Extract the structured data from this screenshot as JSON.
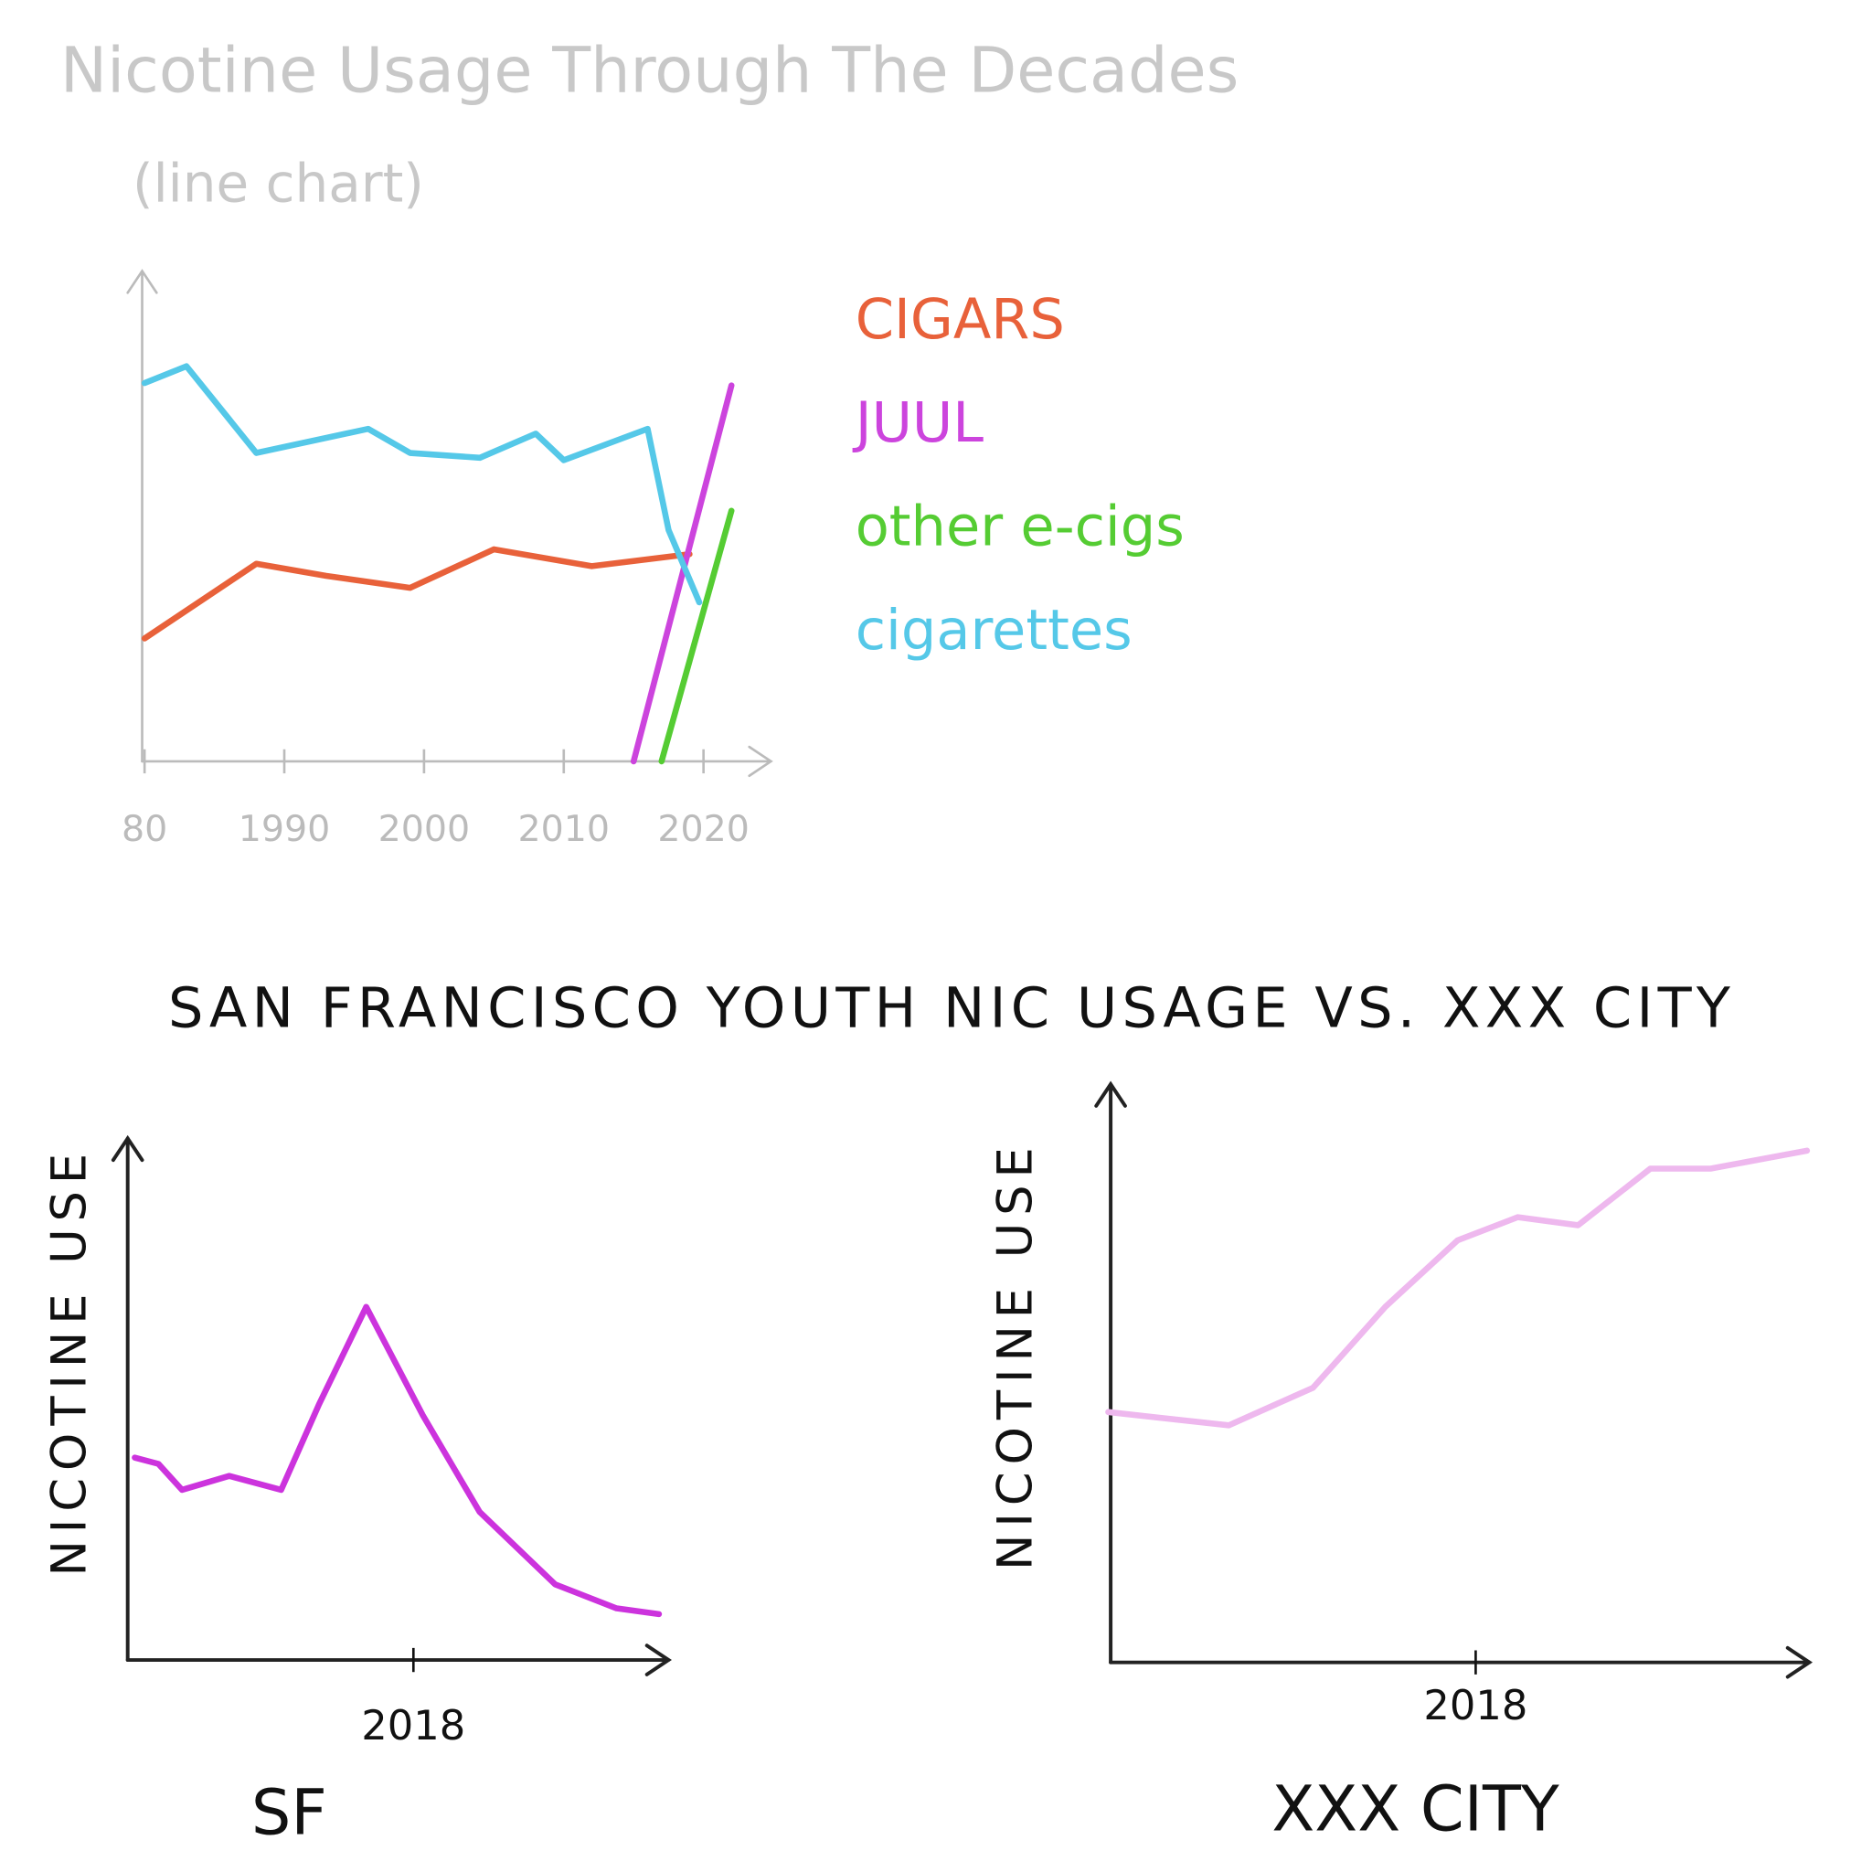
{
  "heading": "SAN FRANCISCO YOUTH NIC USAGE VS. XXX CITY",
  "chart_data": [
    {
      "type": "line",
      "title": "Nicotine Usage Through The Decades",
      "subtitle": "(line chart)",
      "xlim": [
        1979,
        2023
      ],
      "ylim": [
        0,
        100
      ],
      "xticks": [
        {
          "value": 1980,
          "label": "80"
        },
        1990,
        2000,
        2010,
        2020
      ],
      "legend": "right",
      "series": [
        {
          "name": "CIGARS",
          "color": "#e8613a",
          "x": [
            1980,
            1988,
            1993,
            1999,
            2005,
            2012,
            2019
          ],
          "values": [
            25.5,
            41,
            38.5,
            36,
            44,
            40.5,
            43
          ]
        },
        {
          "name": "JUUL",
          "color": "#cc44dd",
          "x": [
            2015,
            2022
          ],
          "values": [
            0,
            78
          ]
        },
        {
          "name": "other e-cigs",
          "color": "#55cc33",
          "x": [
            2017,
            2022
          ],
          "values": [
            0,
            52
          ]
        },
        {
          "name": "cigarettes",
          "color": "#55c8e8",
          "x": [
            1980,
            1983,
            1988,
            1996,
            1999,
            2004,
            2008,
            2010,
            2016,
            2017.5,
            2019.7
          ],
          "values": [
            78.5,
            82,
            64,
            69,
            64,
            63,
            68,
            62.5,
            69,
            48,
            33
          ]
        }
      ]
    },
    {
      "type": "line",
      "x_label": "SF",
      "y_label": "NICOTINE USE",
      "xlim": [
        2012,
        2023.5
      ],
      "ylim": [
        0,
        100
      ],
      "xticks": [
        2018
      ],
      "color": "#cc33dd",
      "x": [
        2012.1,
        2012.6,
        2013.1,
        2014.1,
        2015.2,
        2016,
        2017,
        2018.2,
        2019.4,
        2021,
        2022.3,
        2023.2
      ],
      "values": [
        38.8,
        37.6,
        32.6,
        35.3,
        32.6,
        49,
        67.7,
        46.9,
        28.4,
        14.5,
        9.9,
        8.8
      ]
    },
    {
      "type": "line",
      "x_label": "XXX CITY",
      "y_label": "NICOTINE USE",
      "xlim": [
        2011.9,
        2023.5
      ],
      "ylim": [
        0,
        100
      ],
      "xticks": [
        2018
      ],
      "color": "#eeb8ee",
      "x": [
        2011.9,
        2013.9,
        2015.3,
        2016.5,
        2017.7,
        2018.7,
        2019.7,
        2020.9,
        2021.9,
        2023.5
      ],
      "values": [
        43.3,
        41,
        47.5,
        61.5,
        73,
        77,
        75.6,
        85.4,
        85.4,
        88.5
      ]
    }
  ]
}
